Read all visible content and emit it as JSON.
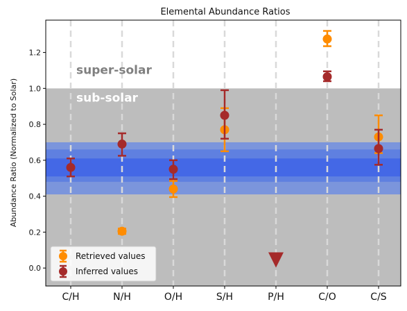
{
  "chart_data": {
    "type": "scatter",
    "title": "Elemental Abundance Ratios",
    "xlabel": "",
    "ylabel": "Abundance Ratio (Normalized to Solar)",
    "categories": [
      "C/H",
      "N/H",
      "O/H",
      "S/H",
      "P/H",
      "C/O",
      "C/S"
    ],
    "ylim": [
      -0.1,
      1.38
    ],
    "yticks": [
      0.0,
      0.2,
      0.4,
      0.6,
      0.8,
      1.0,
      1.2
    ],
    "grid": "vertical dashed",
    "legend_position": "lower-left",
    "regions": {
      "sub_solar_label": "sub-solar",
      "super_solar_label": "super-solar",
      "boundary": 1.0,
      "band_center": 0.56,
      "band_inner": [
        0.51,
        0.61
      ],
      "band_middle": [
        0.48,
        0.66
      ],
      "band_outer": [
        0.41,
        0.7
      ]
    },
    "series": [
      {
        "name": "Retrieved values",
        "color": "#ff8c00",
        "points": [
          {
            "category": "N/H",
            "y": 0.205,
            "err_low": 0.015,
            "err_high": 0.015
          },
          {
            "category": "O/H",
            "y": 0.44,
            "err_low": 0.045,
            "err_high": 0.045
          },
          {
            "category": "S/H",
            "y": 0.77,
            "err_low": 0.12,
            "err_high": 0.12
          },
          {
            "category": "C/O",
            "y": 1.275,
            "err_low": 0.04,
            "err_high": 0.045
          },
          {
            "category": "C/S",
            "y": 0.73,
            "err_low": 0.09,
            "err_high": 0.12
          }
        ]
      },
      {
        "name": "Inferred values",
        "color": "#a52a2a",
        "points": [
          {
            "category": "C/H",
            "y": 0.56,
            "err_low": 0.05,
            "err_high": 0.05
          },
          {
            "category": "N/H",
            "y": 0.69,
            "err_low": 0.065,
            "err_high": 0.06
          },
          {
            "category": "O/H",
            "y": 0.55,
            "err_low": 0.055,
            "err_high": 0.05
          },
          {
            "category": "S/H",
            "y": 0.85,
            "err_low": 0.13,
            "err_high": 0.14
          },
          {
            "category": "C/O",
            "y": 1.065,
            "err_low": 0.025,
            "err_high": 0.03
          },
          {
            "category": "C/S",
            "y": 0.665,
            "err_low": 0.09,
            "err_high": 0.105
          }
        ]
      }
    ],
    "upper_limits": [
      {
        "category": "P/H",
        "y": 0.045,
        "color": "#a52a2a",
        "marker": "down-triangle"
      }
    ]
  }
}
